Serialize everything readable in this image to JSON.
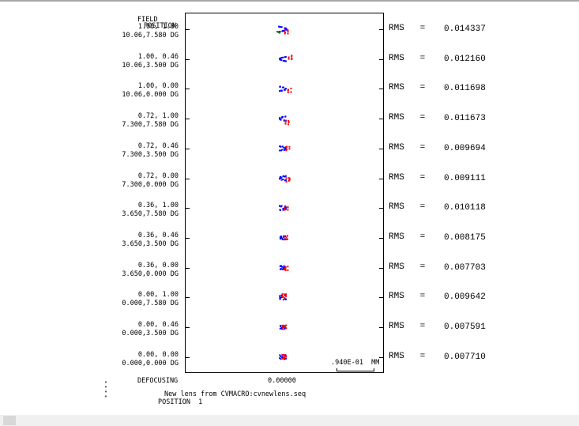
{
  "header": {
    "field_label": "FIELD",
    "position_label": "POSITION"
  },
  "rows": [
    {
      "field": "1.00, 1.00",
      "angle": "10.06,7.580 DG",
      "rms_label": "RMS",
      "eq": "=",
      "rms": "0.014337"
    },
    {
      "field": "1.00, 0.46",
      "angle": "10.06,3.500 DG",
      "rms_label": "RMS",
      "eq": "=",
      "rms": "0.012160"
    },
    {
      "field": "1.00, 0.00",
      "angle": "10.06,0.000 DG",
      "rms_label": "RMS",
      "eq": "=",
      "rms": "0.011698"
    },
    {
      "field": "0.72, 1.00",
      "angle": "7.300,7.580 DG",
      "rms_label": "RMS",
      "eq": "=",
      "rms": "0.011673"
    },
    {
      "field": "0.72, 0.46",
      "angle": "7.300,3.500 DG",
      "rms_label": "RMS",
      "eq": "=",
      "rms": "0.009694"
    },
    {
      "field": "0.72, 0.00",
      "angle": "7.300,0.000 DG",
      "rms_label": "RMS",
      "eq": "=",
      "rms": "0.009111"
    },
    {
      "field": "0.36, 1.00",
      "angle": "3.650,7.580 DG",
      "rms_label": "RMS",
      "eq": "=",
      "rms": "0.010118"
    },
    {
      "field": "0.36, 0.46",
      "angle": "3.650,3.500 DG",
      "rms_label": "RMS",
      "eq": "=",
      "rms": "0.008175"
    },
    {
      "field": "0.36, 0.00",
      "angle": "3.650,0.000 DG",
      "rms_label": "RMS",
      "eq": "=",
      "rms": "0.007703"
    },
    {
      "field": "0.00, 1.00",
      "angle": "0.000,7.580 DG",
      "rms_label": "RMS",
      "eq": "=",
      "rms": "0.009642"
    },
    {
      "field": "0.00, 0.46",
      "angle": "0.000,3.500 DG",
      "rms_label": "RMS",
      "eq": "=",
      "rms": "0.007591"
    },
    {
      "field": "0.00, 0.00",
      "angle": "0.000,0.000 DG",
      "rms_label": "RMS",
      "eq": "=",
      "rms": "0.007710"
    }
  ],
  "scale_label": ".940E-01  MM",
  "defocusing_label": "DEFOCUSING",
  "defocus_value": "0.00000",
  "footer": {
    "lens_line": "New lens from CVMACRO:cvnewlens.seq",
    "position_line": "POSITION  1"
  },
  "colors": {
    "red": "#ff0000",
    "blue": "#0000ff",
    "green": "#008000"
  }
}
